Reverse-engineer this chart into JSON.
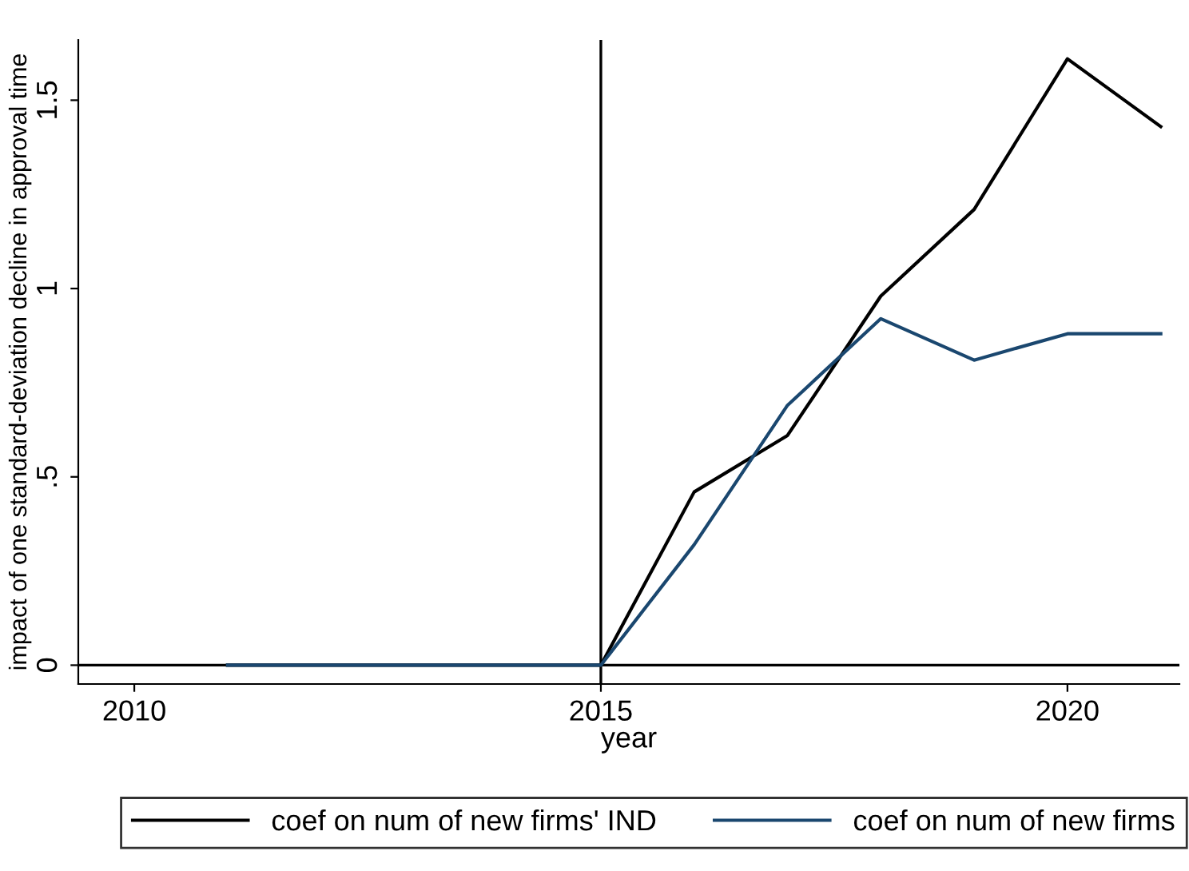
{
  "chart_data": {
    "type": "line",
    "xlabel": "year",
    "ylabel": "impact of one standard-deviation decline in approval time",
    "x": [
      2011,
      2012,
      2013,
      2014,
      2015,
      2016,
      2017,
      2018,
      2019,
      2020,
      2021
    ],
    "series": [
      {
        "name": "coef on num of new firms' IND",
        "color": "#000000",
        "values": [
          0,
          0,
          0,
          0,
          0,
          0.46,
          0.61,
          0.98,
          1.21,
          1.61,
          1.43
        ]
      },
      {
        "name": "coef on num of new firms",
        "color": "#1a476f",
        "values": [
          0,
          0,
          0,
          0,
          0,
          0.32,
          0.69,
          0.92,
          0.81,
          0.88,
          0.88
        ]
      }
    ],
    "xlim": [
      2009.4,
      2021.2
    ],
    "ylim": [
      -0.05,
      1.66
    ],
    "xticks": [
      2010,
      2015,
      2020
    ],
    "yticks": [
      {
        "value": 0,
        "label": "0"
      },
      {
        "value": 0.5,
        "label": ".5"
      },
      {
        "value": 1,
        "label": "1"
      },
      {
        "value": 1.5,
        "label": "1.5"
      }
    ],
    "ref_lines": [
      {
        "axis": "x",
        "value": 2015,
        "color": "#000000"
      },
      {
        "axis": "y",
        "value": 0,
        "color": "#000000"
      }
    ],
    "grid": false,
    "legend": "bottom",
    "marker": "none",
    "line_style": "solid"
  }
}
